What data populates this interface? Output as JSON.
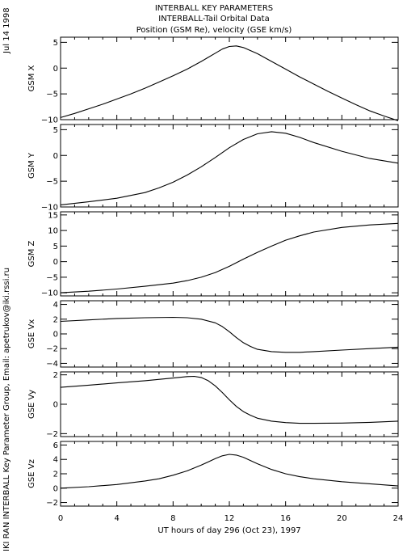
{
  "header": {
    "date": "Jul 14 1998",
    "title1": "INTERBALL KEY PARAMETERS",
    "title2": "INTERBALL-Tail Orbital Data",
    "title3": "Position (GSM Re), velocity (GSE km/s)",
    "credit": "IKI RAN INTERBALL Key Parameter Group, Email: apetrukov@iki.rssi.ru"
  },
  "chart_data": {
    "type": "line",
    "xlabel": "UT hours of day 296 (Oct 23), 1997",
    "xlim": [
      0,
      24
    ],
    "xticks": [
      "0",
      "4",
      "8",
      "12",
      "16",
      "20",
      "24"
    ],
    "panels": [
      {
        "name": "GSM X",
        "ylim": [
          -10,
          6
        ],
        "yticks": [
          5,
          0,
          -5,
          -10
        ],
        "x": [
          0,
          1,
          2,
          3,
          4,
          5,
          6,
          7,
          8,
          9,
          10,
          11,
          11.5,
          12,
          12.5,
          13,
          14,
          15,
          16,
          17,
          18,
          19,
          20,
          21,
          22,
          23,
          24
        ],
        "y": [
          -9.6,
          -8.8,
          -7.9,
          -7.0,
          -6.0,
          -5.0,
          -3.9,
          -2.7,
          -1.5,
          -0.2,
          1.3,
          2.9,
          3.7,
          4.2,
          4.3,
          4.0,
          2.8,
          1.3,
          -0.2,
          -1.7,
          -3.1,
          -4.5,
          -5.8,
          -7.1,
          -8.3,
          -9.3,
          -10.2
        ]
      },
      {
        "name": "GSM Y",
        "ylim": [
          -10,
          6
        ],
        "yticks": [
          5,
          0,
          -5,
          -10
        ],
        "x": [
          0,
          2,
          4,
          6,
          7,
          8,
          9,
          10,
          11,
          12,
          13,
          14,
          15,
          16,
          17,
          18,
          20,
          22,
          24
        ],
        "y": [
          -9.6,
          -9.0,
          -8.3,
          -7.2,
          -6.3,
          -5.2,
          -3.8,
          -2.2,
          -0.4,
          1.5,
          3.1,
          4.2,
          4.6,
          4.3,
          3.5,
          2.5,
          0.8,
          -0.6,
          -1.5
        ]
      },
      {
        "name": "GSM Z",
        "ylim": [
          -11,
          16
        ],
        "yticks": [
          15,
          10,
          5,
          0,
          -5,
          -10
        ],
        "x": [
          0,
          2,
          4,
          6,
          8,
          9,
          10,
          11,
          12,
          13,
          14,
          15,
          16,
          17,
          18,
          20,
          22,
          24
        ],
        "y": [
          -10.0,
          -9.5,
          -8.8,
          -7.9,
          -6.9,
          -6.1,
          -5.0,
          -3.5,
          -1.5,
          0.8,
          3.0,
          5.0,
          6.9,
          8.3,
          9.5,
          11.0,
          11.8,
          12.3
        ]
      },
      {
        "name": "GSE Vx",
        "ylim": [
          -4.5,
          4.5
        ],
        "yticks": [
          4,
          2,
          0,
          -2,
          -4
        ],
        "x": [
          0,
          2,
          4,
          6,
          8,
          9,
          10,
          11,
          11.5,
          12,
          12.5,
          13,
          13.5,
          14,
          15,
          16,
          17,
          18,
          20,
          22,
          24
        ],
        "y": [
          1.7,
          1.9,
          2.1,
          2.2,
          2.25,
          2.2,
          2.0,
          1.5,
          1.0,
          0.3,
          -0.5,
          -1.2,
          -1.7,
          -2.1,
          -2.4,
          -2.5,
          -2.5,
          -2.4,
          -2.2,
          -2.0,
          -1.8
        ]
      },
      {
        "name": "GSE Vy",
        "ylim": [
          -2.2,
          2.2
        ],
        "yticks": [
          2,
          0,
          -2
        ],
        "x": [
          0,
          2,
          4,
          6,
          8,
          9,
          9.5,
          10,
          10.5,
          11,
          11.5,
          12,
          12.5,
          13,
          13.5,
          14,
          15,
          16,
          17,
          18,
          20,
          22,
          24
        ],
        "y": [
          1.15,
          1.3,
          1.45,
          1.6,
          1.78,
          1.88,
          1.9,
          1.82,
          1.6,
          1.25,
          0.8,
          0.3,
          -0.15,
          -0.5,
          -0.75,
          -0.95,
          -1.15,
          -1.25,
          -1.3,
          -1.3,
          -1.28,
          -1.23,
          -1.15
        ]
      },
      {
        "name": "GSE Vz",
        "ylim": [
          -2.5,
          6.5
        ],
        "yticks": [
          6,
          4,
          2,
          0,
          -2
        ],
        "x": [
          0,
          2,
          4,
          6,
          7,
          8,
          9,
          10,
          11,
          11.5,
          12,
          12.5,
          13,
          14,
          15,
          16,
          17,
          18,
          20,
          22,
          24
        ],
        "y": [
          0.0,
          0.2,
          0.5,
          1.0,
          1.3,
          1.8,
          2.4,
          3.2,
          4.1,
          4.5,
          4.7,
          4.6,
          4.3,
          3.4,
          2.6,
          2.0,
          1.6,
          1.3,
          0.9,
          0.6,
          0.3
        ]
      }
    ]
  }
}
